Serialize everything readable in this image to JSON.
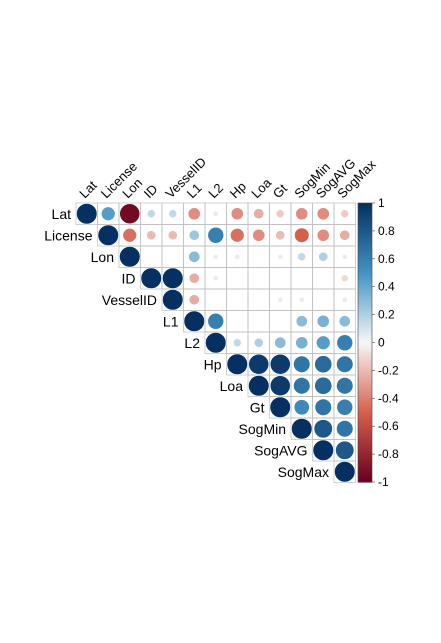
{
  "chart_data": {
    "type": "heatmap",
    "subtype": "corrplot-upper-circle",
    "variables": [
      "Lat",
      "License",
      "Lon",
      "ID",
      "VesselID",
      "L1",
      "L2",
      "Hp",
      "Loa",
      "Gt",
      "SogMin",
      "SogAVG",
      "SogMax"
    ],
    "matrix": [
      [
        1,
        0.45,
        -0.95,
        0.15,
        0.15,
        -0.35,
        0.05,
        -0.35,
        -0.25,
        -0.15,
        -0.35,
        -0.35,
        -0.15
      ],
      [
        0.45,
        1,
        -0.45,
        -0.2,
        -0.2,
        0.25,
        0.6,
        -0.45,
        -0.35,
        -0.2,
        -0.5,
        -0.35,
        -0.25
      ],
      [
        -0.95,
        -0.45,
        1,
        null,
        null,
        0.3,
        0.05,
        0.05,
        null,
        0.05,
        0.15,
        0.2,
        0.05
      ],
      [
        0.15,
        -0.2,
        null,
        1,
        1,
        -0.25,
        0.05,
        null,
        null,
        null,
        null,
        null,
        -0.1
      ],
      [
        0.15,
        -0.2,
        null,
        1,
        1,
        -0.25,
        null,
        null,
        null,
        0.05,
        0.05,
        null,
        0.05
      ],
      [
        -0.35,
        0.25,
        0.3,
        -0.25,
        -0.25,
        1,
        0.6,
        null,
        null,
        null,
        0.3,
        0.35,
        0.3
      ],
      [
        0.05,
        0.6,
        0.05,
        0.05,
        null,
        0.6,
        1,
        0.15,
        0.2,
        0.3,
        0.35,
        0.45,
        0.6
      ],
      [
        -0.35,
        -0.45,
        0.05,
        null,
        null,
        null,
        0.15,
        1,
        0.95,
        0.95,
        0.65,
        0.7,
        0.65
      ],
      [
        -0.25,
        -0.35,
        null,
        null,
        null,
        null,
        0.2,
        0.95,
        1,
        0.95,
        0.65,
        0.7,
        0.65
      ],
      [
        -0.15,
        -0.2,
        0.05,
        null,
        0.05,
        null,
        0.3,
        0.95,
        0.95,
        1,
        0.55,
        0.65,
        0.6
      ],
      [
        -0.35,
        -0.5,
        0.15,
        null,
        0.05,
        0.3,
        0.35,
        0.65,
        0.65,
        0.55,
        1,
        0.8,
        0.65
      ],
      [
        -0.35,
        -0.35,
        0.2,
        null,
        null,
        0.35,
        0.45,
        0.7,
        0.7,
        0.65,
        0.8,
        1,
        0.8
      ],
      [
        -0.15,
        -0.25,
        0.05,
        -0.1,
        0.05,
        0.3,
        0.6,
        0.65,
        0.65,
        0.6,
        0.65,
        0.8,
        1
      ]
    ],
    "colorbar": {
      "range": [
        -1,
        1
      ],
      "ticks": [
        "1",
        "0.8",
        "0.6",
        "0.4",
        "0.2",
        "0",
        "-0.2",
        "-0.4",
        "-0.6",
        "-0.8",
        "-1"
      ],
      "colors": {
        "neg_end": "#67001F",
        "neg_mid": "#D6604D",
        "zero": "#F7F7F7",
        "pos_mid": "#4393C3",
        "pos_end": "#053061"
      }
    }
  }
}
